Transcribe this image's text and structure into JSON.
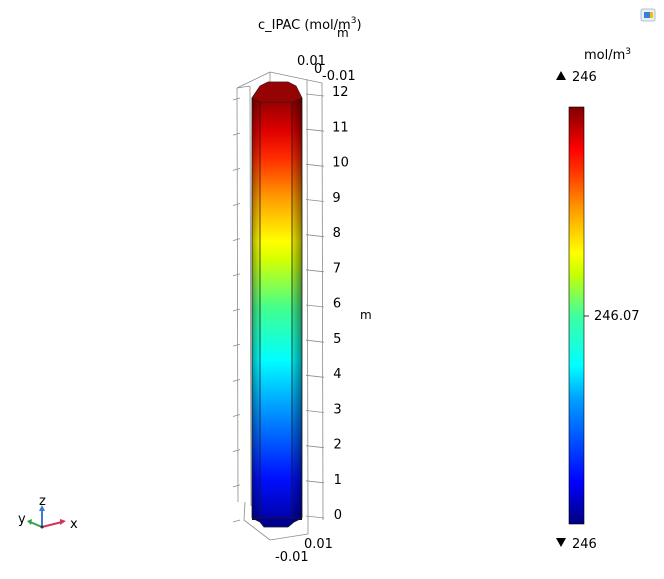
{
  "toolbar": {
    "icon": "colorbar-settings-icon"
  },
  "chart_data": {
    "type": "3d-surface",
    "title": "c_IPAC (mol/m",
    "title_sup": "3",
    "title_close": ")",
    "axis_unit_top": "m",
    "axis_unit_z": "m",
    "z_ticks": [
      "0",
      "1",
      "2",
      "3",
      "4",
      "5",
      "6",
      "7",
      "8",
      "9",
      "10",
      "11",
      "12"
    ],
    "z_range": [
      0,
      12
    ],
    "top_tick_a": "0.01",
    "top_tick_b": "0",
    "top_tick_c": "-0.01",
    "bottom_tick_a": "-0.01",
    "bottom_tick_b": "0.01",
    "colorbar": {
      "unit": "mol/m",
      "unit_sup": "3",
      "max_label": "246",
      "mid_label": "246.07",
      "min_label": "246",
      "colormap": "rainbow",
      "colors": [
        "#00007f",
        "#0000ff",
        "#00a0ff",
        "#00ffff",
        "#3fff9f",
        "#c8ff00",
        "#ffff00",
        "#ffa000",
        "#ff3000",
        "#ff0000",
        "#7f0000"
      ]
    },
    "triad": {
      "x": "x",
      "y": "y",
      "z": "z",
      "x_color": "#d2355a",
      "y_color": "#2fa34a",
      "z_color": "#3a7ad0"
    }
  }
}
